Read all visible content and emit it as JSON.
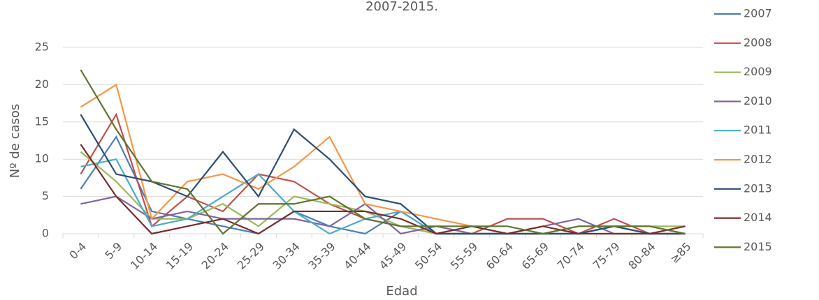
{
  "chart_data": {
    "type": "line",
    "title": "2007-2015.",
    "xlabel": "Edad",
    "ylabel": "Nº de casos",
    "categories": [
      "0-4",
      "5-9",
      "10-14",
      "15-19",
      "20-24",
      "25-29",
      "30-34",
      "35-39",
      "40-44",
      "45-49",
      "50-54",
      "55-59",
      "60-64",
      "65-69",
      "70-74",
      "75-79",
      "80-84",
      "≥85"
    ],
    "ylim": [
      0,
      25
    ],
    "yticks": [
      0,
      5,
      10,
      15,
      20,
      25
    ],
    "grid": true,
    "legend": "right",
    "series": [
      {
        "name": "2007",
        "color": "#4a7ebb",
        "values": [
          6,
          13,
          3,
          2,
          1,
          0,
          3,
          1,
          0,
          3,
          0,
          0,
          0,
          0,
          0,
          1,
          0,
          0
        ]
      },
      {
        "name": "2008",
        "color": "#c0504d",
        "values": [
          8,
          16,
          1,
          5,
          3,
          8,
          7,
          4,
          2,
          1,
          0,
          0,
          2,
          2,
          0,
          2,
          0,
          0
        ]
      },
      {
        "name": "2009",
        "color": "#9bbb59",
        "values": [
          11,
          7,
          2,
          2,
          4,
          1,
          5,
          4,
          3,
          1,
          0,
          0,
          0,
          0,
          1,
          1,
          1,
          1
        ]
      },
      {
        "name": "2010",
        "color": "#8064a2",
        "values": [
          4,
          5,
          2,
          3,
          2,
          2,
          2,
          1,
          4,
          0,
          1,
          0,
          0,
          1,
          2,
          0,
          0,
          0
        ]
      },
      {
        "name": "2011",
        "color": "#4bacc6",
        "values": [
          9,
          10,
          1,
          2,
          5,
          8,
          3,
          0,
          2,
          3,
          0,
          0,
          0,
          0,
          0,
          1,
          1,
          0
        ]
      },
      {
        "name": "2012",
        "color": "#f79646",
        "values": [
          17,
          20,
          2,
          7,
          8,
          6,
          9,
          13,
          4,
          3,
          2,
          1,
          0,
          0,
          0,
          0,
          0,
          0
        ]
      },
      {
        "name": "2013",
        "color": "#2c4d75",
        "values": [
          16,
          8,
          7,
          5,
          11,
          5,
          14,
          10,
          5,
          4,
          0,
          0,
          0,
          0,
          0,
          1,
          0,
          0
        ]
      },
      {
        "name": "2014",
        "color": "#772c2a",
        "values": [
          12,
          5,
          0,
          1,
          2,
          0,
          3,
          3,
          3,
          2,
          0,
          1,
          0,
          1,
          0,
          0,
          0,
          1
        ]
      },
      {
        "name": "2015",
        "color": "#5f7530",
        "values": [
          22,
          14,
          7,
          6,
          0,
          4,
          4,
          5,
          2,
          1,
          1,
          1,
          1,
          0,
          1,
          1,
          1,
          0
        ]
      }
    ]
  }
}
